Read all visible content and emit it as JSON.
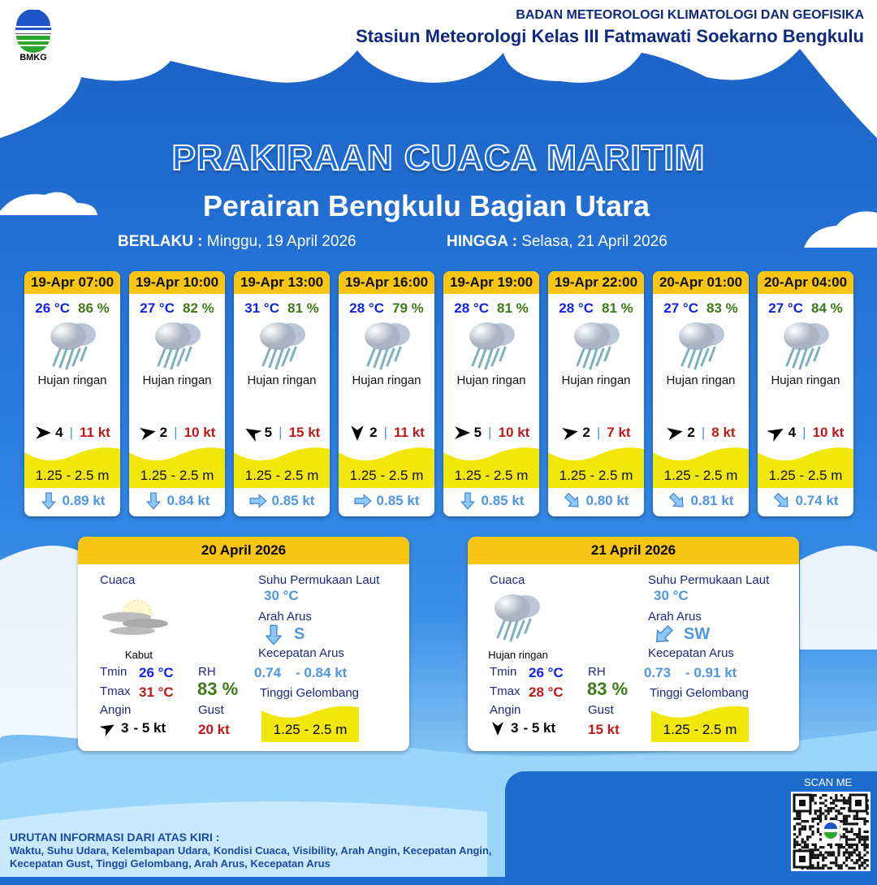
{
  "header": {
    "org": "BADAN METEOROLOGI KLIMATOLOGI DAN GEOFISIKA",
    "station": "Stasiun Meteorologi Kelas III Fatmawati Soekarno Bengkulu",
    "logo_text": "BMKG"
  },
  "title": "PRAKIRAAN CUACA MARITIM",
  "subtitle": "Perairan Bengkulu Bagian Utara",
  "validity": {
    "from_label": "BERLAKU :",
    "from": "Minggu, 19 April 2026",
    "to_label": "HINGGA :",
    "to": "Selasa, 21 April 2026"
  },
  "colors": {
    "header_yellow": "#f7c512",
    "wave_yellow": "#f2e70c",
    "temp": "#1122ee",
    "rh": "#3d7a18",
    "gust": "#c01818",
    "current": "#4d96e6"
  },
  "forecasts": [
    {
      "time": "19-Apr 07:00",
      "temp": "26 °C",
      "rh": "86 %",
      "condition": "Hujan ringan",
      "icon": "light-rain-icon",
      "wind_speed": "4",
      "wind_dir_deg": 90,
      "gust": "11 kt",
      "wave": "1.25 - 2.5 m",
      "current_dir_deg": 180,
      "current_speed": "0.89 kt"
    },
    {
      "time": "19-Apr 10:00",
      "temp": "27 °C",
      "rh": "82 %",
      "condition": "Hujan ringan",
      "icon": "light-rain-icon",
      "wind_speed": "2",
      "wind_dir_deg": 80,
      "gust": "10 kt",
      "wave": "1.25 - 2.5 m",
      "current_dir_deg": 180,
      "current_speed": "0.84 kt"
    },
    {
      "time": "19-Apr 13:00",
      "temp": "31 °C",
      "rh": "81 %",
      "condition": "Hujan ringan",
      "icon": "light-rain-icon",
      "wind_speed": "5",
      "wind_dir_deg": 300,
      "gust": "15 kt",
      "wave": "1.25 - 2.5 m",
      "current_dir_deg": 90,
      "current_speed": "0.85 kt"
    },
    {
      "time": "19-Apr 16:00",
      "temp": "28 °C",
      "rh": "79 %",
      "condition": "Hujan ringan",
      "icon": "light-rain-icon",
      "wind_speed": "2",
      "wind_dir_deg": 180,
      "gust": "11 kt",
      "wave": "1.25 - 2.5 m",
      "current_dir_deg": 90,
      "current_speed": "0.85 kt"
    },
    {
      "time": "19-Apr 19:00",
      "temp": "28 °C",
      "rh": "81 %",
      "condition": "Hujan ringan",
      "icon": "light-rain-icon",
      "wind_speed": "5",
      "wind_dir_deg": 90,
      "gust": "10 kt",
      "wave": "1.25 - 2.5 m",
      "current_dir_deg": 180,
      "current_speed": "0.85 kt"
    },
    {
      "time": "19-Apr 22:00",
      "temp": "28 °C",
      "rh": "81 %",
      "condition": "Hujan ringan",
      "icon": "light-rain-icon",
      "wind_speed": "2",
      "wind_dir_deg": 80,
      "gust": "7 kt",
      "wave": "1.25 - 2.5 m",
      "current_dir_deg": 135,
      "current_speed": "0.80 kt"
    },
    {
      "time": "20-Apr 01:00",
      "temp": "27 °C",
      "rh": "83 %",
      "condition": "Hujan ringan",
      "icon": "light-rain-icon",
      "wind_speed": "2",
      "wind_dir_deg": 80,
      "gust": "8 kt",
      "wave": "1.25 - 2.5 m",
      "current_dir_deg": 135,
      "current_speed": "0.81 kt"
    },
    {
      "time": "20-Apr 04:00",
      "temp": "27 °C",
      "rh": "84 %",
      "condition": "Hujan ringan",
      "icon": "light-rain-icon",
      "wind_speed": "4",
      "wind_dir_deg": 60,
      "gust": "10 kt",
      "wave": "1.25 - 2.5 m",
      "current_dir_deg": 135,
      "current_speed": "0.74 kt"
    }
  ],
  "daily": [
    {
      "date": "20 April 2026",
      "weather_label": "Cuaca",
      "condition": "Kabut",
      "icon": "fog-icon",
      "tmin_label": "Tmin",
      "tmin": "26 °C",
      "tmax_label": "Tmax",
      "tmax": "31 °C",
      "rh_label": "RH",
      "rh": "83 %",
      "wind_label": "Angin",
      "wind_min": "3",
      "wind_max": "- 5 kt",
      "wind_dir_deg": 60,
      "gust_label": "Gust",
      "gust": "20 kt",
      "sst_label": "Suhu Permukaan Laut",
      "sst": "30 °C",
      "current_dir_label": "Arah Arus",
      "current_dir": "S",
      "current_dir_deg": 180,
      "current_speed_label": "Kecepatan Arus",
      "current_min": "0.74",
      "current_max": "- 0.84 kt",
      "wave_label": "Tinggi Gelombang",
      "wave": "1.25 - 2.5 m"
    },
    {
      "date": "21 April 2026",
      "weather_label": "Cuaca",
      "condition": "Hujan ringan",
      "icon": "light-rain-icon",
      "tmin_label": "Tmin",
      "tmin": "26 °C",
      "tmax_label": "Tmax",
      "tmax": "28 °C",
      "rh_label": "RH",
      "rh": "83 %",
      "wind_label": "Angin",
      "wind_min": "3",
      "wind_max": "- 5 kt",
      "wind_dir_deg": 180,
      "gust_label": "Gust",
      "gust": "15 kt",
      "sst_label": "Suhu Permukaan Laut",
      "sst": "30 °C",
      "current_dir_label": "Arah Arus",
      "current_dir": "SW",
      "current_dir_deg": 225,
      "current_speed_label": "Kecepatan Arus",
      "current_min": "0.73",
      "current_max": "- 0.91 kt",
      "wave_label": "Tinggi Gelombang",
      "wave": "1.25 - 2.5 m"
    }
  ],
  "qr": {
    "label": "SCAN ME"
  },
  "footer": {
    "title": "URUTAN INFORMASI DARI ATAS KIRI :",
    "text": "Waktu, Suhu Udara, Kelembapan Udara, Kondisi Cuaca, Visibility, Arah Angin, Kecepatan Angin, Kecepatan Gust, Tinggi Gelombang, Arah Arus, Kecepatan Arus"
  }
}
